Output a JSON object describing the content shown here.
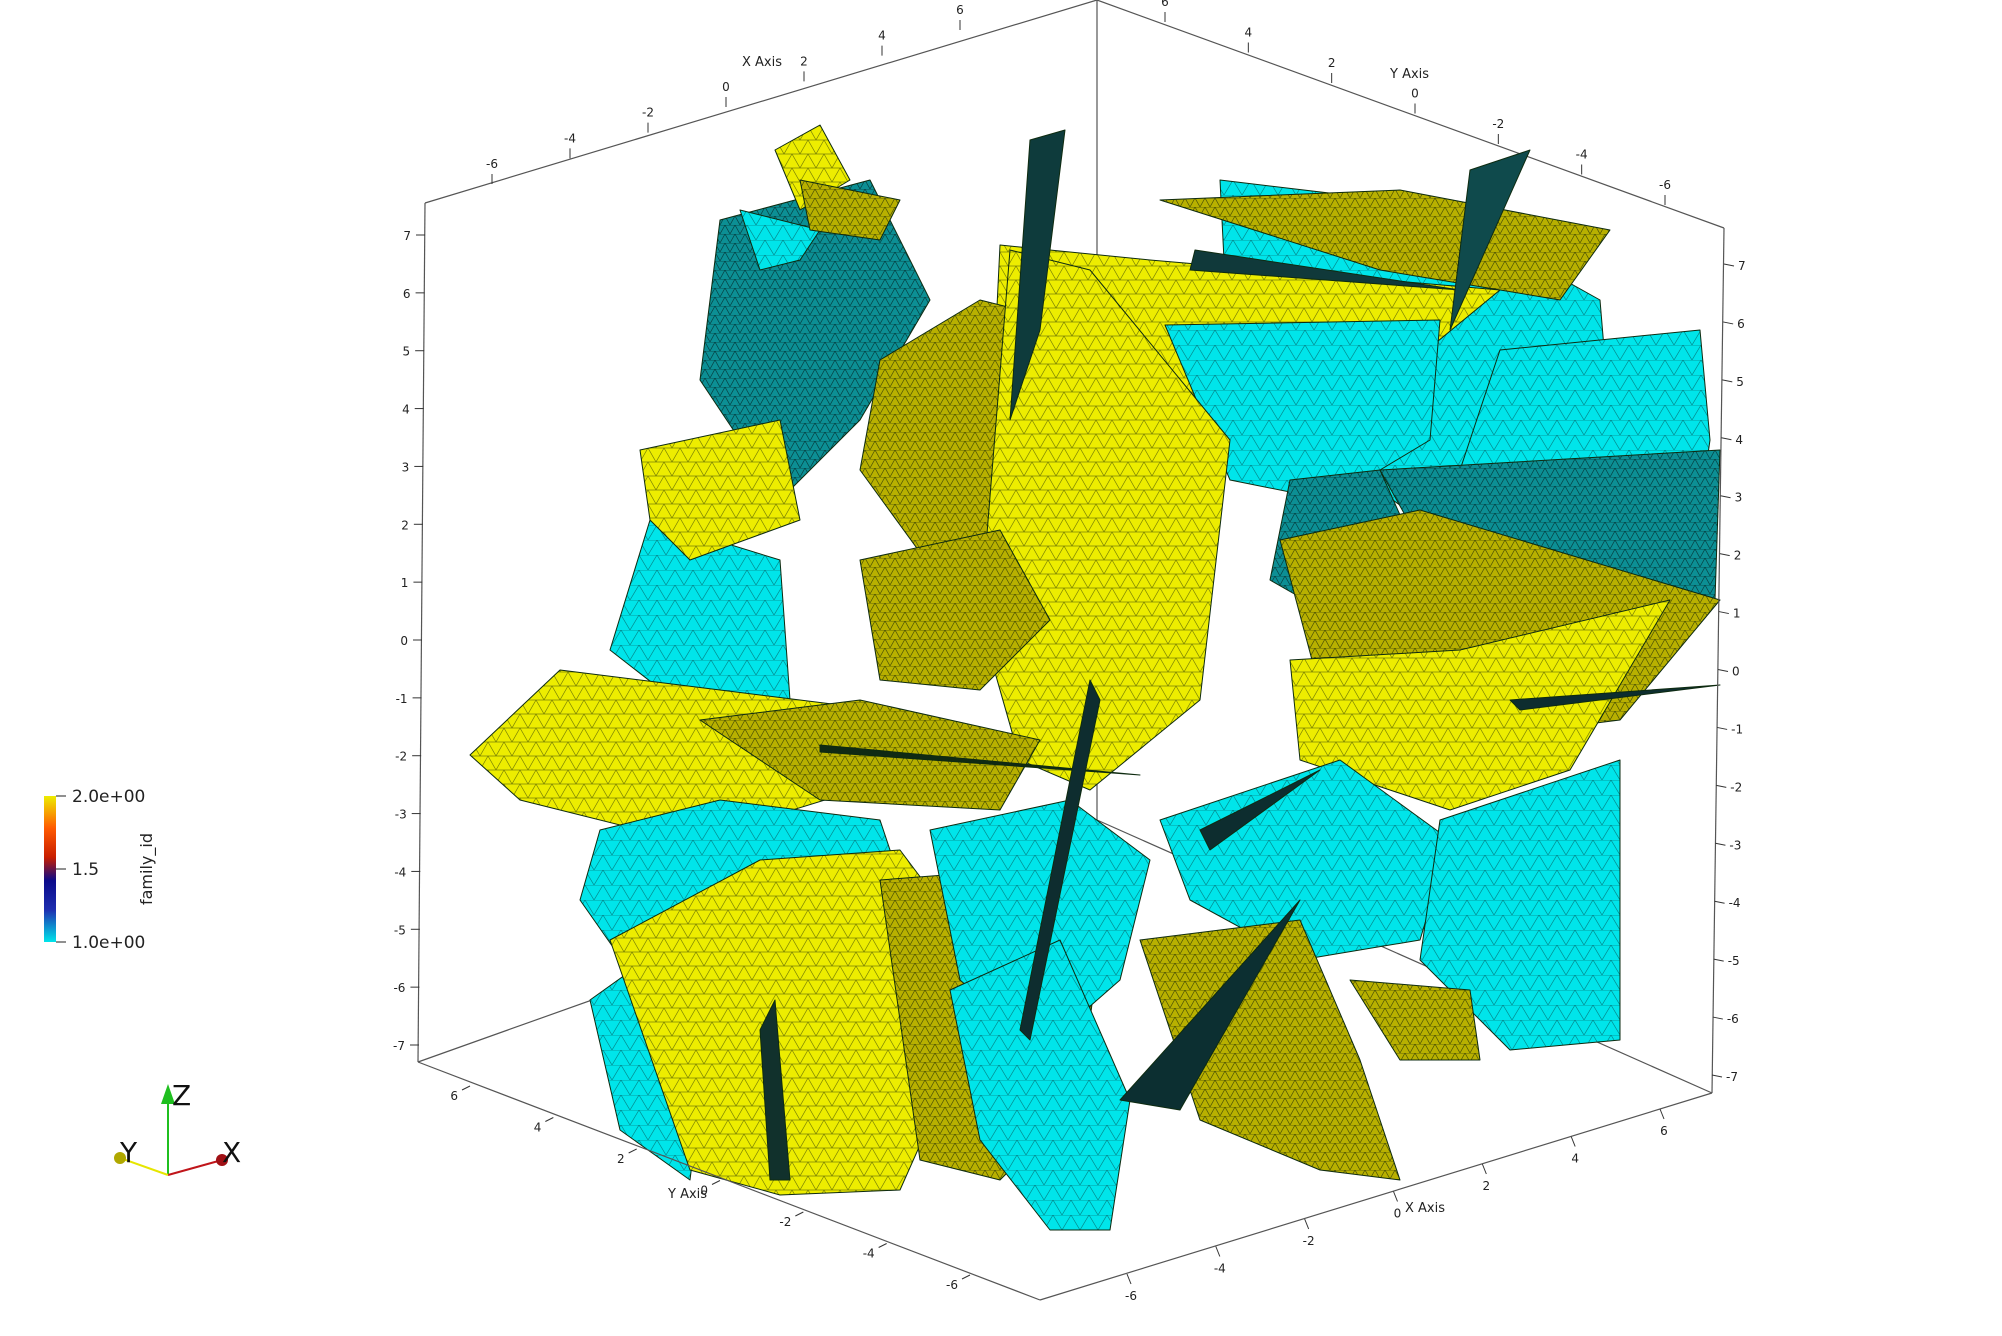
{
  "colors": {
    "background": "#ffffff",
    "family_1": "#00e5ea",
    "family_2": "#eded00",
    "mesh_line": "#0d2a2a",
    "bounding_box": "#555555"
  },
  "axes": {
    "x_title_top": "X Axis",
    "y_title_top": "Y Axis",
    "y_title_bottom": "Y Axis",
    "x_title_bottom": "X Axis",
    "top_x_ticks": [
      "-6",
      "-4",
      "-2",
      "0",
      "2",
      "4",
      "6"
    ],
    "top_y_ticks": [
      "6",
      "4",
      "2",
      "0",
      "-2",
      "-4",
      "-6"
    ],
    "left_z_ticks": [
      "7",
      "6",
      "5",
      "4",
      "3",
      "2",
      "1",
      "0",
      "-1",
      "-2",
      "-3",
      "-4",
      "-5",
      "-6",
      "-7"
    ],
    "right_z_ticks": [
      "7",
      "6",
      "5",
      "4",
      "3",
      "2",
      "1",
      "0",
      "-1",
      "-2",
      "-3",
      "-4",
      "-5",
      "-6",
      "-7"
    ],
    "bottom_y_ticks": [
      "6",
      "4",
      "2",
      "0",
      "-2",
      "-4",
      "-6"
    ],
    "bottom_x_ticks": [
      "-6",
      "-4",
      "-2",
      "0",
      "2",
      "4",
      "6"
    ]
  },
  "legend": {
    "title": "family_id",
    "max_label": "2.0e+00",
    "mid_label": "1.5",
    "min_label": "1.0e+00",
    "color_stops": [
      "#00e5ea",
      "#1e2fb0",
      "#0a0a8a",
      "#c81e00",
      "#ff5a00",
      "#eded00"
    ]
  },
  "orientation": {
    "x_label": "X",
    "y_label": "Y",
    "z_label": "Z",
    "x_color": "#c0151a",
    "y_color": "#e6e600",
    "z_color": "#1fbf1f"
  }
}
